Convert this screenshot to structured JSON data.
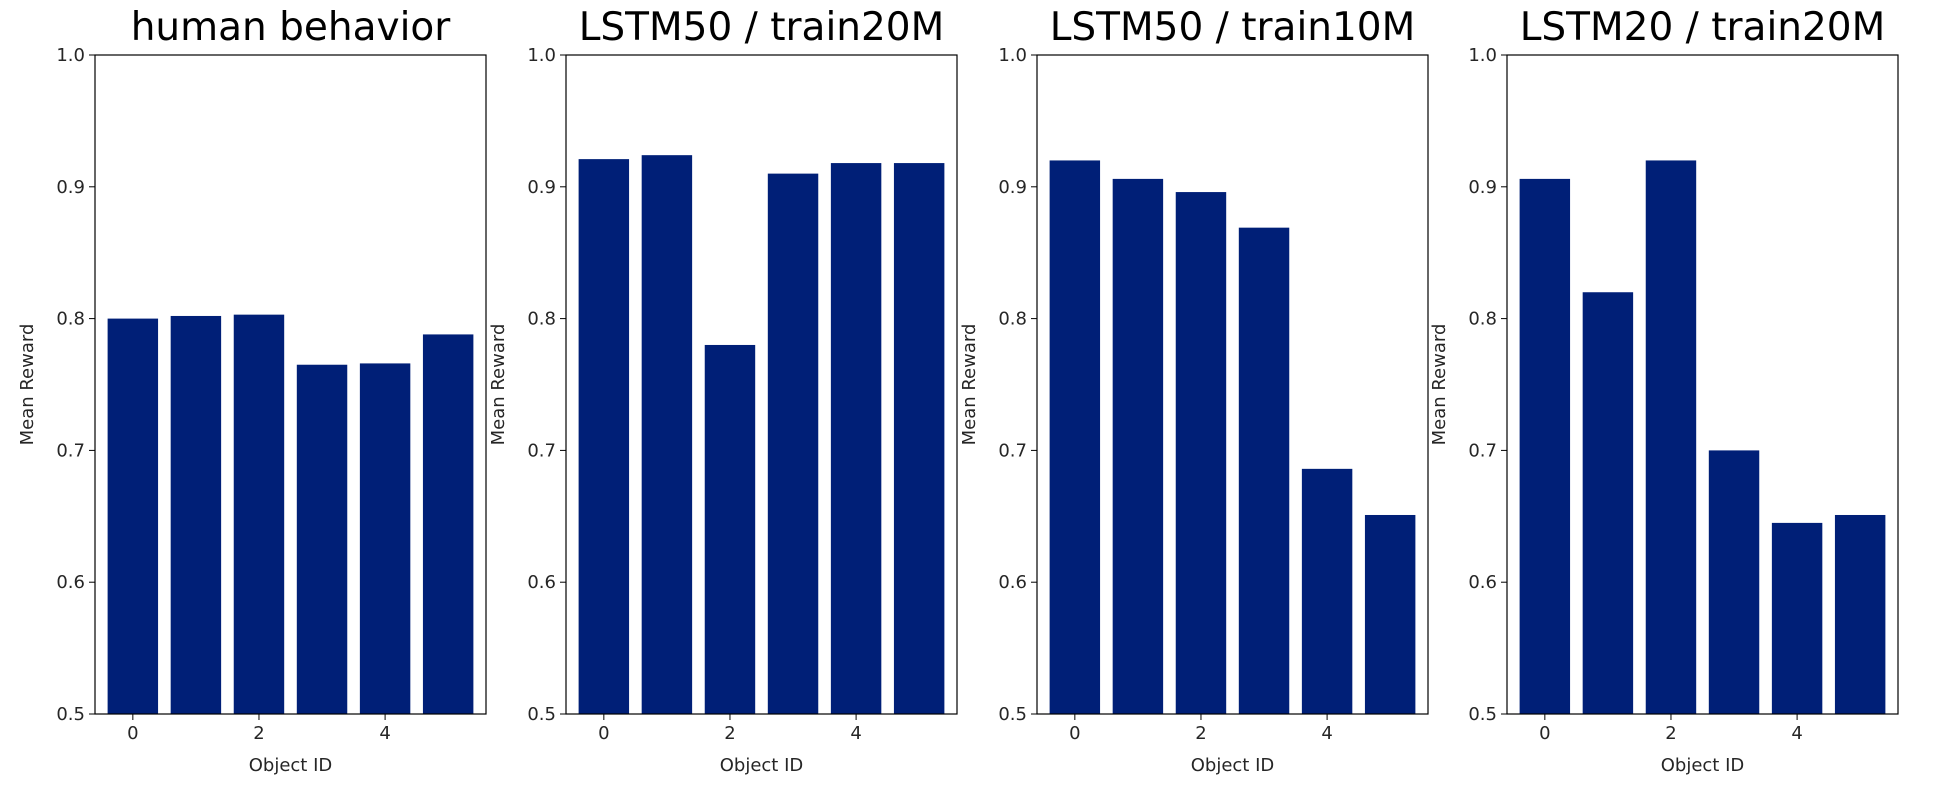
{
  "chart_data": [
    {
      "type": "bar",
      "title": "human behavior",
      "xlabel": "Object ID",
      "ylabel": "Mean Reward",
      "categories": [
        0,
        1,
        2,
        3,
        4,
        5
      ],
      "values": [
        0.8,
        0.802,
        0.803,
        0.765,
        0.766,
        0.788
      ],
      "ylim": [
        0.5,
        1.0
      ],
      "yticks": [
        "0.5",
        "0.6",
        "0.7",
        "0.8",
        "0.9",
        "1.0"
      ],
      "xticks": [
        "0",
        "2",
        "4"
      ],
      "color": "#001f77",
      "grid": false
    },
    {
      "type": "bar",
      "title": "LSTM50 / train20M",
      "xlabel": "Object ID",
      "ylabel": "Mean Reward",
      "categories": [
        0,
        1,
        2,
        3,
        4,
        5
      ],
      "values": [
        0.921,
        0.924,
        0.78,
        0.91,
        0.918,
        0.918
      ],
      "ylim": [
        0.5,
        1.0
      ],
      "yticks": [
        "0.5",
        "0.6",
        "0.7",
        "0.8",
        "0.9",
        "1.0"
      ],
      "xticks": [
        "0",
        "2",
        "4"
      ],
      "color": "#001f77",
      "grid": false
    },
    {
      "type": "bar",
      "title": "LSTM50 / train10M",
      "xlabel": "Object ID",
      "ylabel": "Mean Reward",
      "categories": [
        0,
        1,
        2,
        3,
        4,
        5
      ],
      "values": [
        0.92,
        0.906,
        0.896,
        0.869,
        0.686,
        0.651
      ],
      "ylim": [
        0.5,
        1.0
      ],
      "yticks": [
        "0.5",
        "0.6",
        "0.7",
        "0.8",
        "0.9",
        "1.0"
      ],
      "xticks": [
        "0",
        "2",
        "4"
      ],
      "color": "#001f77",
      "grid": false
    },
    {
      "type": "bar",
      "title": "LSTM20 / train20M",
      "xlabel": "Object ID",
      "ylabel": "Mean Reward",
      "categories": [
        0,
        1,
        2,
        3,
        4,
        5
      ],
      "values": [
        0.906,
        0.82,
        0.92,
        0.7,
        0.645,
        0.651
      ],
      "ylim": [
        0.5,
        1.0
      ],
      "yticks": [
        "0.5",
        "0.6",
        "0.7",
        "0.8",
        "0.9",
        "1.0"
      ],
      "xticks": [
        "0",
        "2",
        "4"
      ],
      "color": "#001f77",
      "grid": false
    }
  ]
}
